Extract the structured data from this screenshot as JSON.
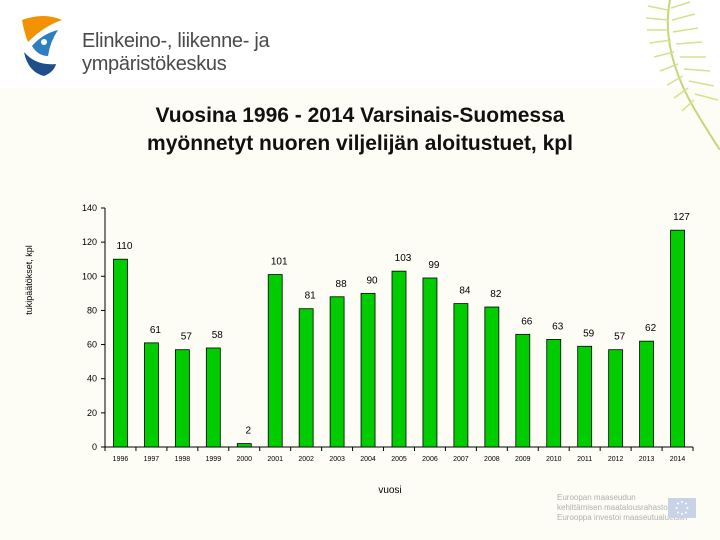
{
  "header": {
    "org_line1": "Elinkeino-, liikenne- ja",
    "org_line2": "ympäristökeskus"
  },
  "chart_data": {
    "type": "bar",
    "title": "Vuosina 1996 - 2014 Varsinais-Suomessa myönnetyt nuoren viljelijän aloitustuet, kpl",
    "title_lines": [
      "Vuosina 1996 - 2014 Varsinais-Suomessa",
      "myönnetyt nuoren viljelijän aloitustuet, kpl"
    ],
    "xlabel": "vuosi",
    "ylabel": "tukipäätökset, kpl",
    "categories": [
      "1996",
      "1997",
      "1998",
      "1999",
      "2000",
      "2001",
      "2002",
      "2003",
      "2004",
      "2005",
      "2006",
      "2007",
      "2008",
      "2009",
      "2010",
      "2011",
      "2012",
      "2013",
      "2014"
    ],
    "values": [
      110,
      61,
      57,
      58,
      2,
      101,
      81,
      88,
      90,
      103,
      99,
      84,
      82,
      66,
      63,
      59,
      57,
      62,
      127
    ],
    "ylim": [
      0,
      140
    ],
    "yticks": [
      0,
      20,
      40,
      60,
      80,
      100,
      120,
      140
    ],
    "bar_color": "#00cc00",
    "grid": false,
    "legend": "none"
  },
  "footer": {
    "eu_line1": "Euroopan maaseudun",
    "eu_line2": "kehittämisen maatalousrahasto:",
    "eu_line3": "Eurooppa investoi maaseutualueisiin"
  }
}
